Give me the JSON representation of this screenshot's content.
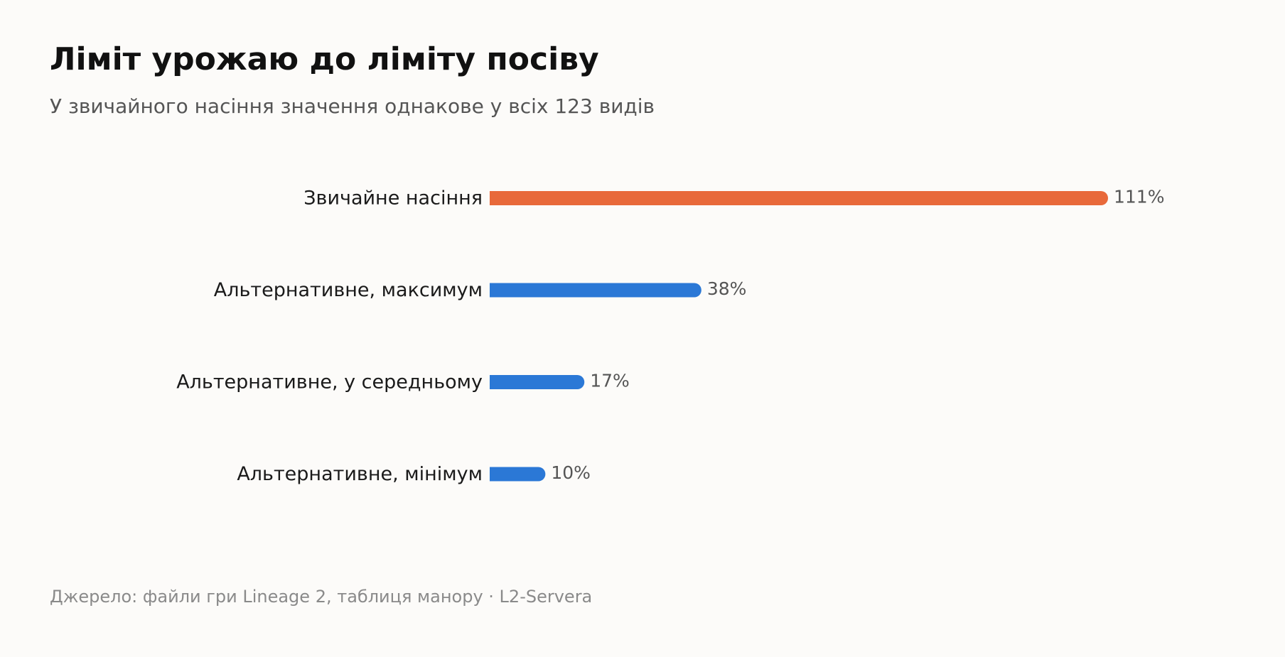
{
  "title": "Ліміт урожаю до ліміту посіву",
  "subtitle": "У звичайного насіння значення однакове у всіх 123 видів",
  "source": "Джерело: файли гри Lineage 2, таблиця манору · L2-Servera",
  "colors": {
    "highlight": "#e8693a",
    "normal": "#2b78d6",
    "category_text": "#1a1a1a",
    "value_text": "#555555"
  },
  "chart_data": {
    "type": "bar",
    "orientation": "horizontal",
    "categories": [
      "Звичайне насіння",
      "Альтернативне, максимум",
      "Альтернативне, у середньому",
      "Альтернативне, мінімум"
    ],
    "values": [
      111,
      38,
      17,
      10
    ],
    "value_labels": [
      "111%",
      "38%",
      "17%",
      "10%"
    ],
    "highlighted": [
      true,
      false,
      false,
      false
    ],
    "unit": "%",
    "xlim": [
      0,
      111
    ],
    "grid": false,
    "legend": "none"
  }
}
